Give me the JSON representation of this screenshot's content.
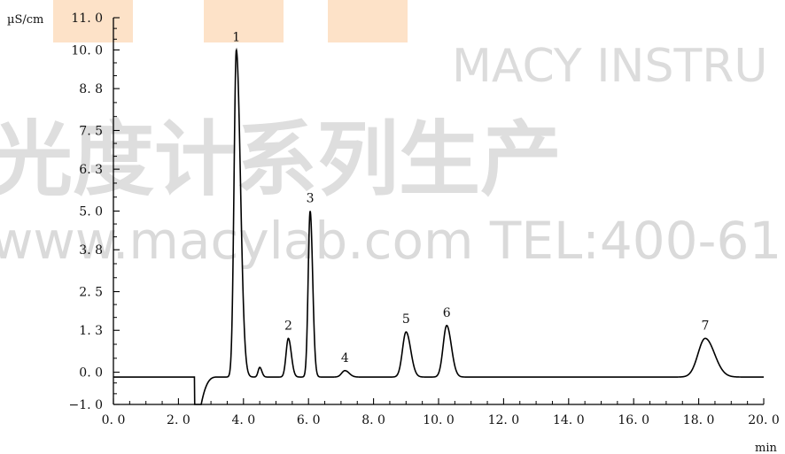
{
  "watermark": {
    "brand": "MACY INSTRU",
    "cjk": "光度计系列生产",
    "url": "www.macylab.com   TEL:400-61"
  },
  "chart_data": {
    "type": "line",
    "title": "",
    "xlabel": "min",
    "ylabel": "µS/cm",
    "xlim": [
      0,
      20
    ],
    "ylim": [
      -1,
      11
    ],
    "x_ticks": [
      0,
      2,
      4,
      6,
      8,
      10,
      12,
      14,
      16,
      18,
      20
    ],
    "x_tick_labels": [
      "0. 0",
      "2. 0",
      "4. 0",
      "6. 0",
      "8. 0",
      "10. 0",
      "12. 0",
      "14. 0",
      "16. 0",
      "18. 0",
      "20. 0"
    ],
    "y_ticks": [
      -1.0,
      0.0,
      1.3,
      2.5,
      3.8,
      5.0,
      6.3,
      7.5,
      8.8,
      10.0,
      11.0
    ],
    "y_tick_labels": [
      "−1. 0",
      "0. 0",
      "1. 3",
      "2. 5",
      "3. 8",
      "5. 0",
      "6. 3",
      "7. 5",
      "8. 8",
      "10. 0",
      "11. 0"
    ],
    "grid": false,
    "baseline": -0.15,
    "injection_dip": {
      "start": 2.5,
      "min_value": -1.0,
      "recover_end": 3.2
    },
    "peaks": [
      {
        "label": "1",
        "x": 3.78,
        "y": 10.0
      },
      {
        "label": "2",
        "x": 5.38,
        "y": 1.05
      },
      {
        "label": "3",
        "x": 6.05,
        "y": 5.0
      },
      {
        "label": "4",
        "x": 7.12,
        "y": 0.05
      },
      {
        "label": "5",
        "x": 9.0,
        "y": 1.25
      },
      {
        "label": "6",
        "x": 10.25,
        "y": 1.45
      },
      {
        "label": "7",
        "x": 18.2,
        "y": 1.05
      }
    ],
    "minor_peaks": [
      {
        "x": 4.5,
        "y": 0.15
      }
    ]
  }
}
